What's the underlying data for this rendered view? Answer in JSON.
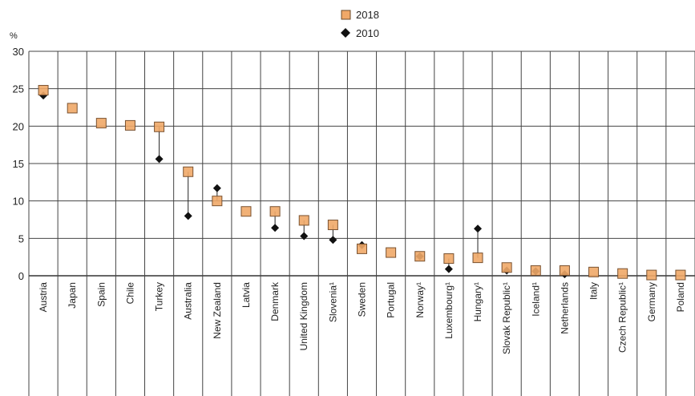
{
  "chart_data": {
    "type": "scatter",
    "ylabel": "%",
    "ylim": [
      0,
      30
    ],
    "yticks": [
      0,
      5,
      10,
      15,
      20,
      25,
      30
    ],
    "categories": [
      "Austria",
      "Japan",
      "Spain",
      "Chile",
      "Turkey",
      "Australia",
      "New Zealand",
      "Latvia",
      "Denmark",
      "United Kingdom",
      "Slovenia¹",
      "Sweden",
      "Portugal",
      "Norway¹",
      "Luxembourg¹",
      "Hungary¹",
      "Slovak Republic¹",
      "Iceland¹",
      "Netherlands",
      "Italy",
      "Czech Republic¹",
      "Germany",
      "Poland"
    ],
    "series": [
      {
        "name": "2018",
        "marker": "square",
        "color": "#f0a868",
        "values": [
          24.8,
          22.4,
          20.4,
          20.1,
          19.9,
          13.9,
          10.0,
          8.6,
          8.6,
          7.4,
          6.8,
          3.6,
          3.1,
          2.6,
          2.3,
          2.4,
          1.1,
          0.7,
          0.7,
          0.5,
          0.3,
          0.1,
          0.1
        ]
      },
      {
        "name": "2010",
        "marker": "diamond",
        "color": "#111111",
        "values": [
          24.1,
          null,
          null,
          null,
          15.6,
          8.0,
          11.7,
          null,
          6.4,
          5.3,
          4.8,
          4.1,
          null,
          2.6,
          0.9,
          6.3,
          0.7,
          0.6,
          0.2,
          null,
          null,
          null,
          null
        ]
      }
    ],
    "legend": [
      "2018",
      "2010"
    ],
    "legend_position": "top-center",
    "grid": true
  }
}
